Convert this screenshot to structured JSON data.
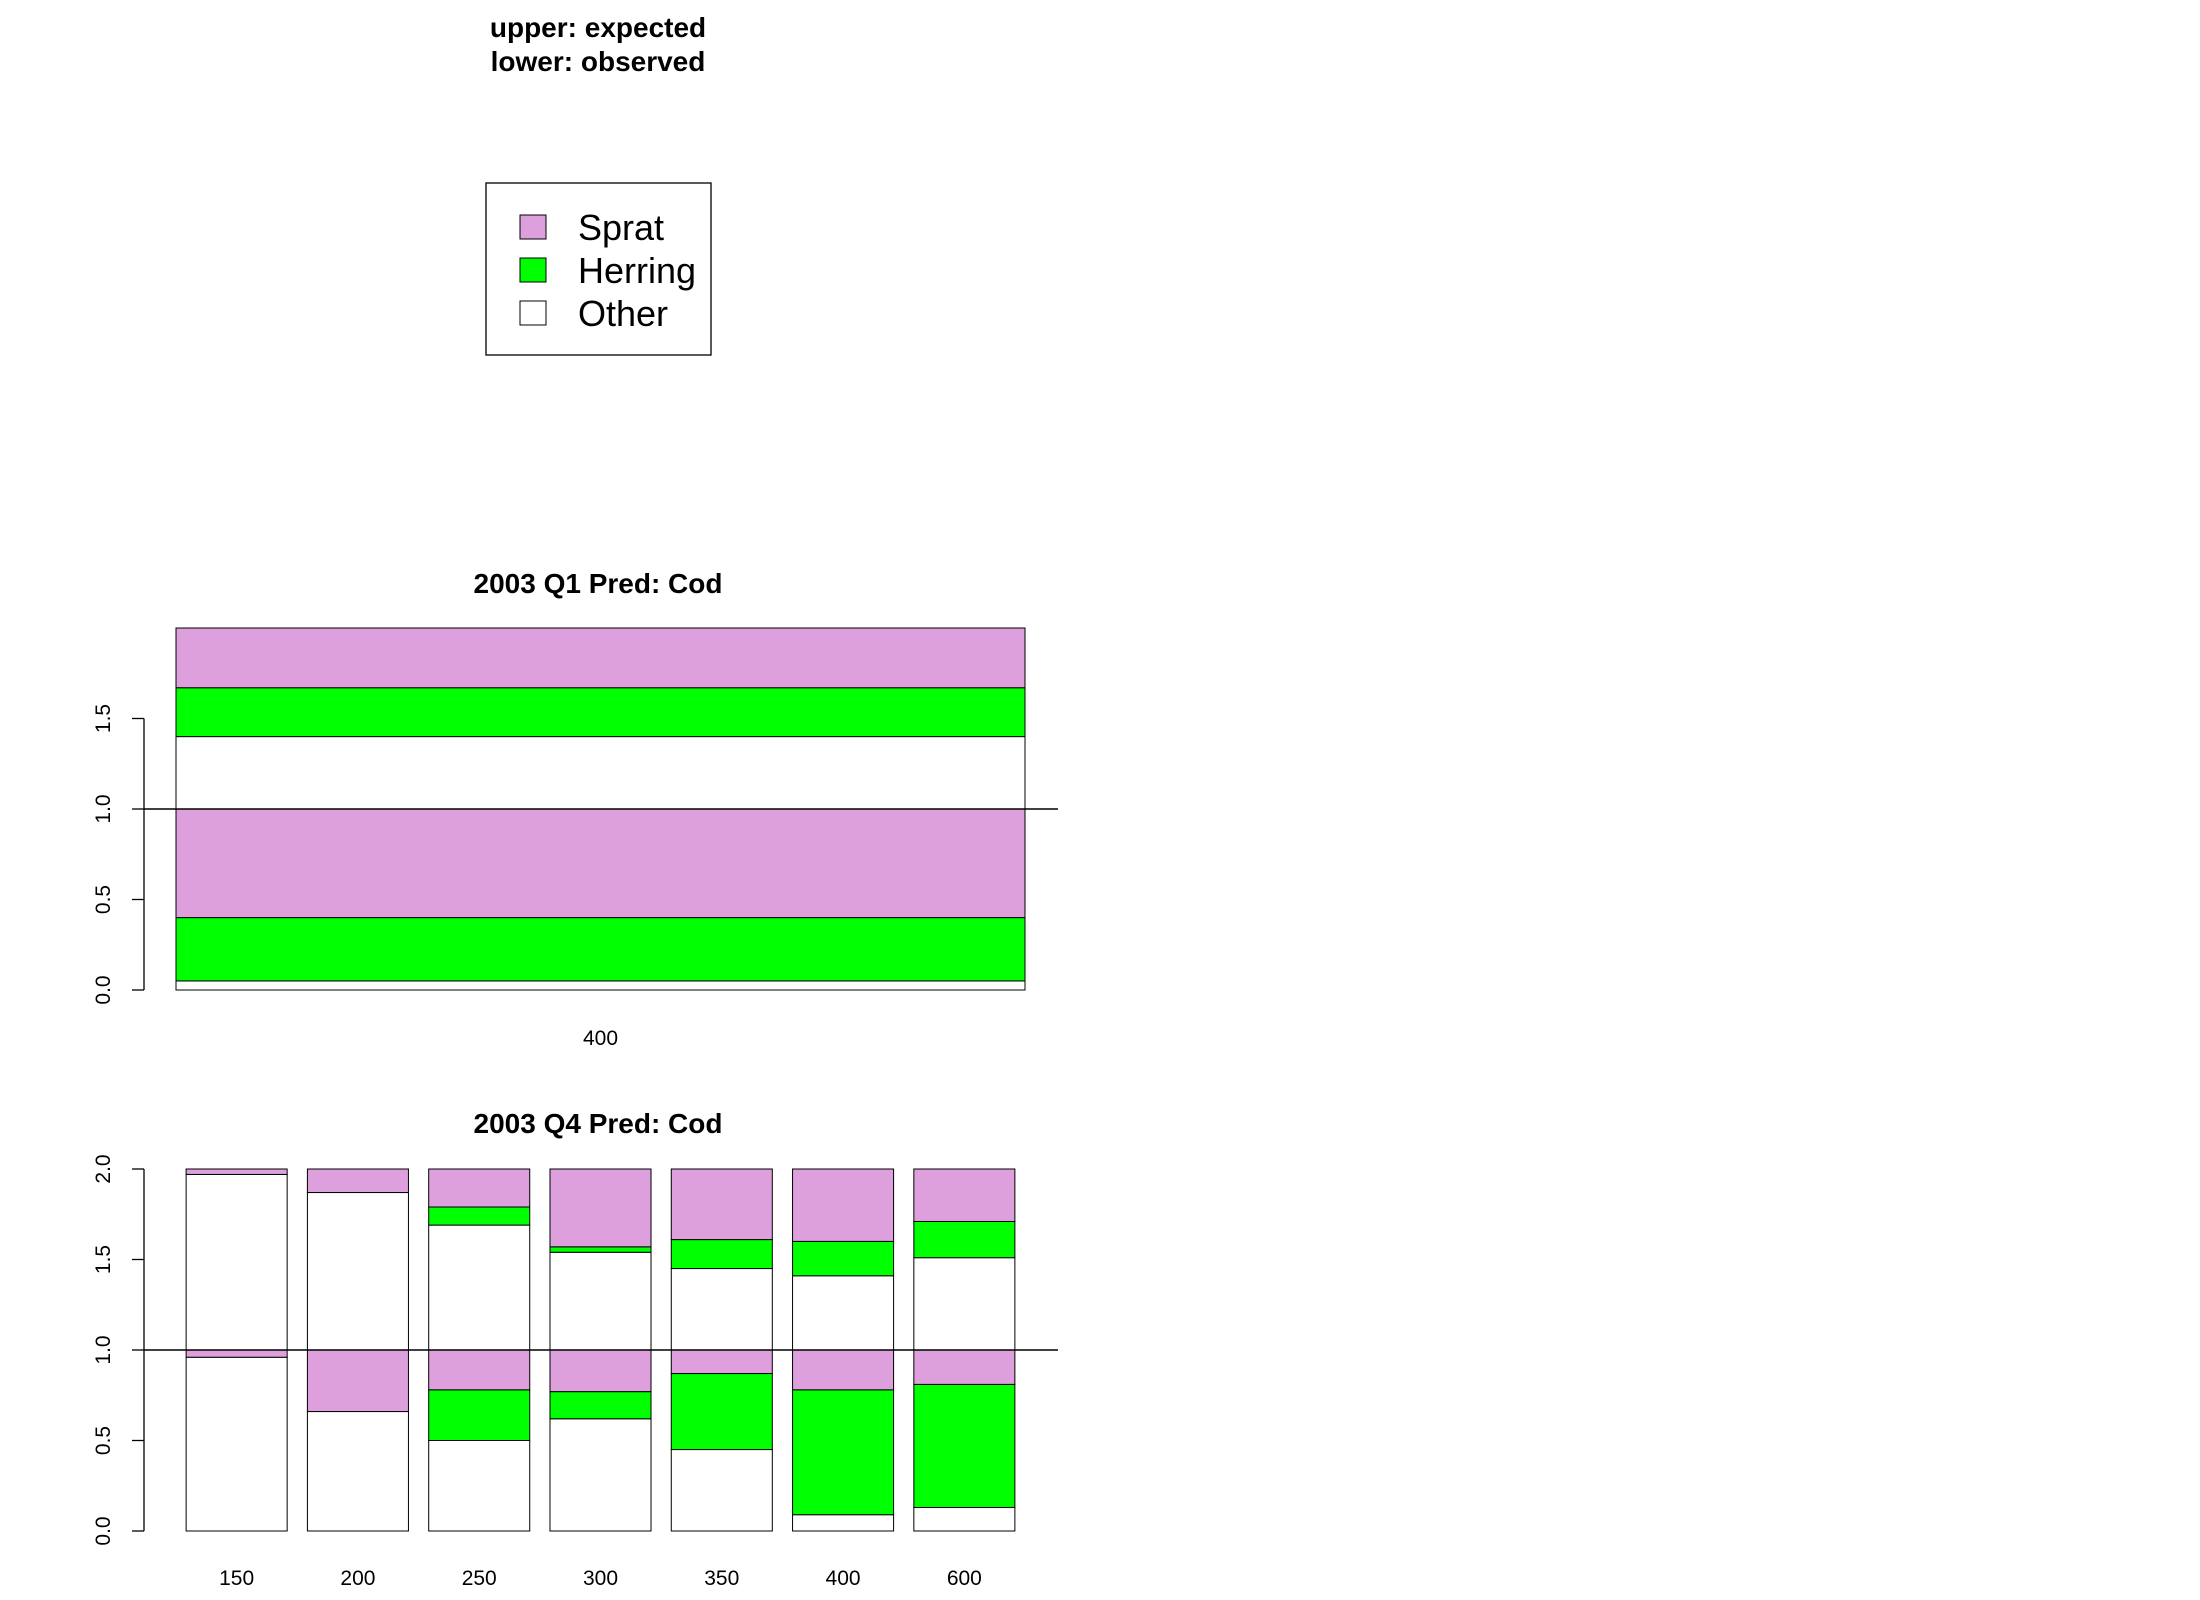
{
  "header": {
    "line1": "upper: expected",
    "line2": "lower: observed"
  },
  "legend": [
    {
      "label": "Sprat",
      "color": "#DDA0DD"
    },
    {
      "label": "Herring",
      "color": "#00FF00"
    },
    {
      "label": "Other",
      "color": "#FFFFFF"
    }
  ],
  "chart_data": [
    {
      "type": "bar",
      "title": "2003 Q1  Pred: Cod",
      "categories": [
        "400"
      ],
      "ylim": [
        0,
        2
      ],
      "y_ticks": [
        "0.0",
        "0.5",
        "1.0",
        "1.5"
      ],
      "reference_line": 1.0,
      "expected": {
        "Other": [
          0.4
        ],
        "Herring": [
          0.27
        ],
        "Sprat": [
          0.33
        ]
      },
      "observed": {
        "Other": [
          0.05
        ],
        "Herring": [
          0.35
        ],
        "Sprat": [
          0.6
        ]
      }
    },
    {
      "type": "bar",
      "title": "2003 Q4  Pred: Cod",
      "categories": [
        "150",
        "200",
        "250",
        "300",
        "350",
        "400",
        "600"
      ],
      "ylim": [
        0,
        2
      ],
      "y_ticks": [
        "0.0",
        "0.5",
        "1.0",
        "1.5",
        "2.0"
      ],
      "reference_line": 1.0,
      "expected": {
        "Other": [
          0.97,
          0.87,
          0.69,
          0.54,
          0.45,
          0.41,
          0.51
        ],
        "Herring": [
          0.0,
          0.0,
          0.1,
          0.03,
          0.16,
          0.19,
          0.2
        ],
        "Sprat": [
          0.03,
          0.13,
          0.21,
          0.43,
          0.39,
          0.4,
          0.29
        ]
      },
      "observed": {
        "Other": [
          0.96,
          0.66,
          0.5,
          0.62,
          0.45,
          0.09,
          0.13
        ],
        "Herring": [
          0.0,
          0.0,
          0.28,
          0.15,
          0.42,
          0.69,
          0.68
        ],
        "Sprat": [
          0.04,
          0.34,
          0.22,
          0.23,
          0.13,
          0.22,
          0.19
        ]
      }
    }
  ]
}
